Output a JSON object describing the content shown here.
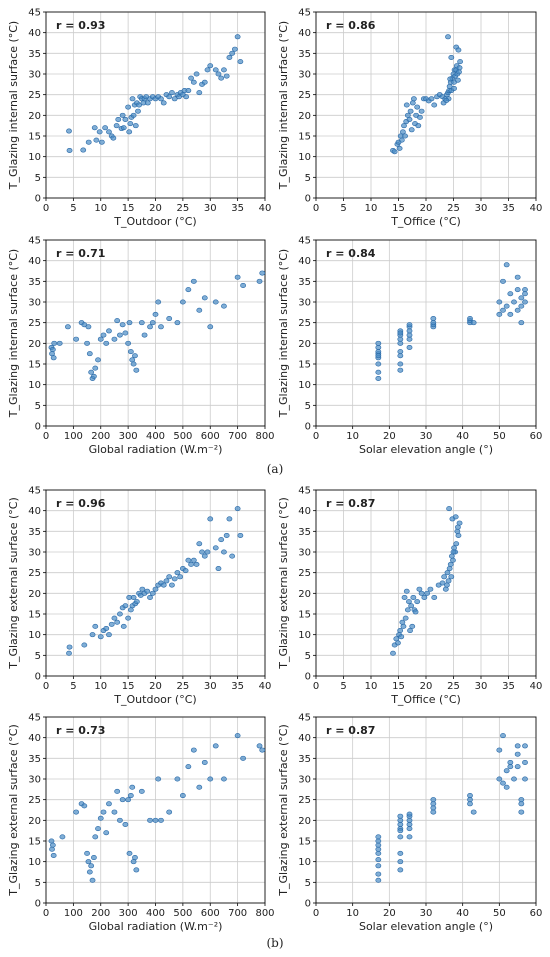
{
  "figure_labels": {
    "a": "(a)",
    "b": "(b)"
  },
  "style": {
    "point_color": "#4a8cc4",
    "point_edge": "#2a6aa8",
    "grid_color": "#cccccc"
  },
  "chart_data": [
    {
      "type": "scatter",
      "group": "a",
      "r_label": "r = 0.93",
      "xlabel": "T_Outdoor (°C)",
      "ylabel": "T_Glazing internal surface (°C)",
      "xlim": [
        0,
        40
      ],
      "ylim": [
        0,
        45
      ],
      "xticks": [
        0,
        5,
        10,
        15,
        20,
        25,
        30,
        35,
        40
      ],
      "yticks": [
        0,
        5,
        10,
        15,
        20,
        25,
        30,
        35,
        40,
        45
      ],
      "grid": true,
      "x": [
        4.2,
        4.3,
        6.8,
        7.8,
        8.9,
        9.2,
        9.8,
        10.2,
        10.8,
        11.5,
        12,
        12.3,
        12.9,
        13.2,
        13.8,
        14,
        14.2,
        14.5,
        15,
        15.2,
        15.4,
        15.6,
        15.8,
        16,
        16.2,
        16.4,
        16.6,
        16.8,
        17,
        17.2,
        17.5,
        17.8,
        18,
        18.3,
        18.6,
        19,
        19.5,
        20,
        20.5,
        21,
        21.5,
        22,
        22.5,
        23,
        23.5,
        24,
        24.3,
        24.6,
        25,
        25.3,
        25.6,
        26,
        26.5,
        27,
        27.5,
        28,
        28.5,
        29,
        29.5,
        30,
        31,
        31.5,
        32,
        32.5,
        33,
        33.5,
        34,
        34.5,
        35,
        35.5
      ],
      "y": [
        16.2,
        11.5,
        11.6,
        13.5,
        17,
        14,
        16,
        13.5,
        17,
        16,
        15,
        14.5,
        17.5,
        19,
        16.8,
        20,
        17,
        19,
        22,
        16,
        18,
        19.5,
        24,
        20,
        22.5,
        17.5,
        23,
        21,
        22.5,
        24.5,
        24,
        23,
        24,
        24.5,
        23,
        24,
        24.5,
        24,
        24.5,
        24,
        23,
        25,
        24.5,
        25.5,
        24,
        25,
        24.5,
        25.5,
        25,
        26,
        24.5,
        26,
        29,
        28,
        30,
        25.5,
        27.5,
        28,
        31,
        32,
        31,
        30,
        29,
        31,
        29.5,
        34,
        35,
        36,
        39,
        33
      ]
    },
    {
      "type": "scatter",
      "group": "a",
      "r_label": "r = 0.86",
      "xlabel": "T_Office (°C)",
      "ylabel": "T_Glazing internal surface (°C)",
      "xlim": [
        0,
        40
      ],
      "ylim": [
        0,
        45
      ],
      "xticks": [
        0,
        5,
        10,
        15,
        20,
        25,
        30,
        35,
        40
      ],
      "yticks": [
        0,
        5,
        10,
        15,
        20,
        25,
        30,
        35,
        40,
        45
      ],
      "grid": true,
      "x": [
        14,
        14.3,
        14.8,
        15,
        15.2,
        15.4,
        15.6,
        15.8,
        16,
        16.2,
        16.4,
        16.5,
        16.7,
        17,
        17.2,
        17.4,
        17.6,
        17.8,
        18,
        18.2,
        18.4,
        18.6,
        18.9,
        19.2,
        19.6,
        20,
        20.5,
        21,
        21.5,
        22,
        22.5,
        23,
        23.2,
        23.5,
        23.8,
        24,
        24.1,
        24.2,
        24.3,
        24.5,
        24.6,
        24.8,
        25,
        25.1,
        25.2,
        25.3,
        25.5,
        25.6,
        25.7,
        25.8,
        26,
        26.1,
        26.2,
        24,
        24.6,
        25.5,
        25.9,
        24.4,
        25.1,
        23.7
      ],
      "y": [
        11.5,
        11.2,
        13,
        13.5,
        12,
        15,
        14,
        16,
        17.5,
        15,
        18.5,
        22.5,
        20,
        19,
        21,
        16.5,
        23,
        24,
        18,
        20,
        22,
        17.5,
        19.5,
        21,
        24,
        24,
        23.5,
        24,
        22.5,
        24.5,
        25,
        24.5,
        23,
        24,
        25,
        25.5,
        24,
        26,
        27,
        28,
        26,
        29,
        30,
        28,
        31,
        29.5,
        31,
        32,
        30,
        28.5,
        30.5,
        31.5,
        33,
        39,
        34,
        36.5,
        35.8,
        28.8,
        26.5,
        23.6
      ]
    },
    {
      "type": "scatter",
      "group": "a",
      "r_label": "r = 0.71",
      "xlabel": "Global radiation (W.m⁻²)",
      "ylabel": "T_Glazing internal surface (°C)",
      "xlim": [
        0,
        800
      ],
      "ylim": [
        0,
        45
      ],
      "xticks": [
        0,
        100,
        200,
        300,
        400,
        500,
        600,
        700,
        800
      ],
      "yticks": [
        0,
        5,
        10,
        15,
        20,
        25,
        30,
        35,
        40,
        45
      ],
      "grid": true,
      "x": [
        20,
        22,
        25,
        28,
        30,
        50,
        80,
        110,
        130,
        140,
        150,
        155,
        160,
        165,
        170,
        175,
        180,
        190,
        200,
        210,
        220,
        230,
        250,
        260,
        270,
        280,
        290,
        300,
        305,
        310,
        315,
        320,
        325,
        330,
        350,
        360,
        380,
        390,
        400,
        410,
        420,
        450,
        480,
        500,
        520,
        540,
        560,
        580,
        600,
        620,
        650,
        700,
        720,
        780,
        790
      ],
      "y": [
        19,
        17.5,
        18.5,
        16.5,
        20,
        20,
        24,
        21,
        25,
        24.5,
        20,
        24,
        17.5,
        13,
        11.5,
        12,
        14,
        16,
        21,
        22,
        20,
        23,
        21,
        25.5,
        22,
        24.5,
        22.5,
        20,
        25,
        18,
        16,
        15,
        17,
        13.5,
        25,
        22,
        24,
        25,
        27,
        30,
        24,
        26,
        25,
        30,
        33,
        35,
        28,
        31,
        24,
        30,
        29,
        36,
        34,
        35,
        37
      ]
    },
    {
      "type": "scatter",
      "group": "a",
      "r_label": "r = 0.84",
      "xlabel": "Solar elevation angle (°)",
      "ylabel": "T_Glazing internal surface (°C)",
      "xlim": [
        0,
        60
      ],
      "ylim": [
        0,
        45
      ],
      "xticks": [
        0,
        10,
        20,
        30,
        40,
        50,
        60
      ],
      "yticks": [
        0,
        5,
        10,
        15,
        20,
        25,
        30,
        35,
        40,
        45
      ],
      "grid": true,
      "x": [
        17,
        17,
        17,
        17,
        17,
        17,
        17,
        17,
        17,
        23,
        23,
        23,
        23,
        23,
        23,
        23,
        23,
        23,
        25.5,
        25.5,
        25.5,
        25.5,
        25.5,
        25.5,
        32,
        32,
        32,
        32,
        42,
        42,
        42,
        43,
        50,
        50,
        51,
        51,
        52,
        52,
        53,
        53,
        54,
        55,
        55,
        55,
        56,
        56,
        56,
        57,
        57,
        57
      ],
      "y": [
        11.5,
        13,
        15,
        16.5,
        17.5,
        18,
        19,
        17,
        20,
        13.5,
        15,
        17,
        18,
        20,
        21,
        22,
        23,
        22.5,
        19,
        21,
        22,
        23,
        24,
        24.5,
        24,
        24.5,
        25,
        26,
        25,
        25.5,
        26,
        25,
        27,
        30,
        28,
        35,
        29,
        39,
        27,
        32,
        30,
        33,
        36,
        28,
        31,
        25,
        29,
        32,
        33,
        30
      ]
    },
    {
      "type": "scatter",
      "group": "b",
      "r_label": "r = 0.96",
      "xlabel": "T_Outdoor (°C)",
      "ylabel": "T_Glazing external surface (°C)",
      "xlim": [
        0,
        40
      ],
      "ylim": [
        0,
        45
      ],
      "xticks": [
        0,
        5,
        10,
        15,
        20,
        25,
        30,
        35,
        40
      ],
      "yticks": [
        0,
        5,
        10,
        15,
        20,
        25,
        30,
        35,
        40,
        45
      ],
      "grid": true,
      "x": [
        4.2,
        4.3,
        7,
        8.5,
        9,
        10,
        10.5,
        11,
        11.5,
        12,
        12.5,
        13,
        13.5,
        14,
        14.2,
        14.5,
        15,
        15.2,
        15.5,
        15.8,
        16,
        16.3,
        16.6,
        17,
        17.3,
        17.6,
        18,
        18.5,
        19,
        19.5,
        20,
        20.5,
        21,
        21.5,
        22,
        22.5,
        23,
        23.5,
        24,
        24.5,
        25,
        25.5,
        26,
        26.5,
        27,
        27.5,
        28,
        28.5,
        29,
        29.5,
        30,
        31,
        31.5,
        32,
        32.5,
        33,
        33.5,
        34,
        35,
        35.5
      ],
      "y": [
        5.5,
        7,
        7.5,
        10,
        12,
        9.5,
        11,
        11.5,
        10,
        12.5,
        14,
        13,
        15,
        16.5,
        12,
        17,
        14,
        19,
        16,
        17,
        19,
        17.5,
        18,
        20,
        19.5,
        21,
        20,
        20.5,
        19,
        20,
        21,
        22,
        22.5,
        22,
        23,
        24,
        22,
        23.5,
        25,
        24,
        26,
        25.5,
        28,
        27,
        28,
        27,
        32,
        30,
        29,
        30,
        38,
        31,
        26,
        33,
        30,
        34,
        38,
        29,
        40.5,
        34
      ]
    },
    {
      "type": "scatter",
      "group": "b",
      "r_label": "r = 0.87",
      "xlabel": "T_Office (°C)",
      "ylabel": "T_Glazing external surface (°C)",
      "xlim": [
        0,
        40
      ],
      "ylim": [
        0,
        45
      ],
      "xticks": [
        0,
        5,
        10,
        15,
        20,
        25,
        30,
        35,
        40
      ],
      "yticks": [
        0,
        5,
        10,
        15,
        20,
        25,
        30,
        35,
        40,
        45
      ],
      "grid": true,
      "x": [
        14,
        14.3,
        14.6,
        14.9,
        15.1,
        15.3,
        15.5,
        15.7,
        15.9,
        16.1,
        16.3,
        16.5,
        16.7,
        16.9,
        17.1,
        17.3,
        17.5,
        17.7,
        17.9,
        18.1,
        18.4,
        18.8,
        19.2,
        19.7,
        20.2,
        20.8,
        21.5,
        22.3,
        23,
        23.3,
        23.6,
        23.9,
        24.1,
        24.3,
        24.5,
        24.7,
        24.9,
        25.1,
        25.3,
        25.5,
        25.7,
        25.9,
        26.1,
        24.2,
        24.8,
        25.4,
        25,
        24.6,
        25.8,
        23.8
      ],
      "y": [
        5.5,
        7.5,
        9,
        8,
        10,
        11,
        9.5,
        13,
        12,
        19,
        14,
        20.5,
        16,
        18,
        11,
        17,
        12,
        19,
        16,
        15.5,
        18,
        21,
        20,
        19,
        20,
        21,
        19,
        22,
        22.5,
        24,
        21,
        25,
        23,
        26,
        27,
        29,
        28,
        31,
        30,
        32,
        35,
        34,
        37,
        40.5,
        38,
        38.5,
        30,
        24,
        36,
        22
      ]
    },
    {
      "type": "scatter",
      "group": "b",
      "r_label": "r = 0.73",
      "xlabel": "Global radiation (W.m⁻²)",
      "ylabel": "T_Glazing external surface (°C)",
      "xlim": [
        0,
        800
      ],
      "ylim": [
        0,
        45
      ],
      "xticks": [
        0,
        100,
        200,
        300,
        400,
        500,
        600,
        700,
        800
      ],
      "yticks": [
        0,
        5,
        10,
        15,
        20,
        25,
        30,
        35,
        40,
        45
      ],
      "grid": true,
      "x": [
        20,
        22,
        25,
        28,
        60,
        110,
        130,
        140,
        150,
        155,
        160,
        165,
        170,
        175,
        180,
        190,
        200,
        210,
        220,
        230,
        250,
        260,
        270,
        280,
        290,
        300,
        305,
        310,
        315,
        320,
        325,
        330,
        350,
        380,
        400,
        410,
        420,
        450,
        480,
        500,
        520,
        540,
        560,
        580,
        600,
        620,
        650,
        700,
        720,
        780,
        790
      ],
      "y": [
        15,
        13,
        14,
        11.5,
        16,
        22,
        24,
        23.5,
        12,
        10,
        7.5,
        9,
        5.5,
        11,
        16,
        18,
        20.5,
        22,
        17,
        24,
        22,
        27,
        20,
        25,
        19,
        25,
        12,
        26,
        28,
        10,
        11,
        8,
        27,
        20,
        20,
        30,
        20,
        22,
        30,
        26,
        33,
        37,
        28,
        34,
        30,
        38,
        30,
        40.5,
        35,
        38,
        37
      ]
    },
    {
      "type": "scatter",
      "group": "b",
      "r_label": "r = 0.87",
      "xlabel": "Solar elevation angle (°)",
      "ylabel": "T_Glazing external surface (°C)",
      "xlim": [
        0,
        60
      ],
      "ylim": [
        0,
        45
      ],
      "xticks": [
        0,
        10,
        20,
        30,
        40,
        50,
        60
      ],
      "yticks": [
        0,
        5,
        10,
        15,
        20,
        25,
        30,
        35,
        40,
        45
      ],
      "grid": true,
      "x": [
        17,
        17,
        17,
        17,
        17,
        17,
        17,
        17,
        17,
        23,
        23,
        23,
        23,
        23,
        23,
        23,
        23,
        23,
        25.5,
        25.5,
        25.5,
        25.5,
        25.5,
        25.5,
        32,
        32,
        32,
        32,
        42,
        42,
        42,
        43,
        50,
        50,
        51,
        51,
        52,
        52,
        53,
        53,
        54,
        55,
        55,
        55,
        56,
        56,
        56,
        57,
        57,
        57
      ],
      "y": [
        5.5,
        7,
        9,
        10.5,
        12,
        13,
        14,
        15,
        16,
        8,
        10,
        12,
        16,
        18,
        19,
        20,
        21,
        17.5,
        16,
        18,
        19,
        20,
        21,
        21.5,
        22,
        23,
        24,
        25,
        24,
        25,
        26,
        22,
        30,
        37,
        29,
        40.5,
        28,
        32,
        34,
        33,
        30,
        38,
        36,
        33,
        24,
        25,
        22,
        38,
        30,
        34
      ]
    }
  ]
}
